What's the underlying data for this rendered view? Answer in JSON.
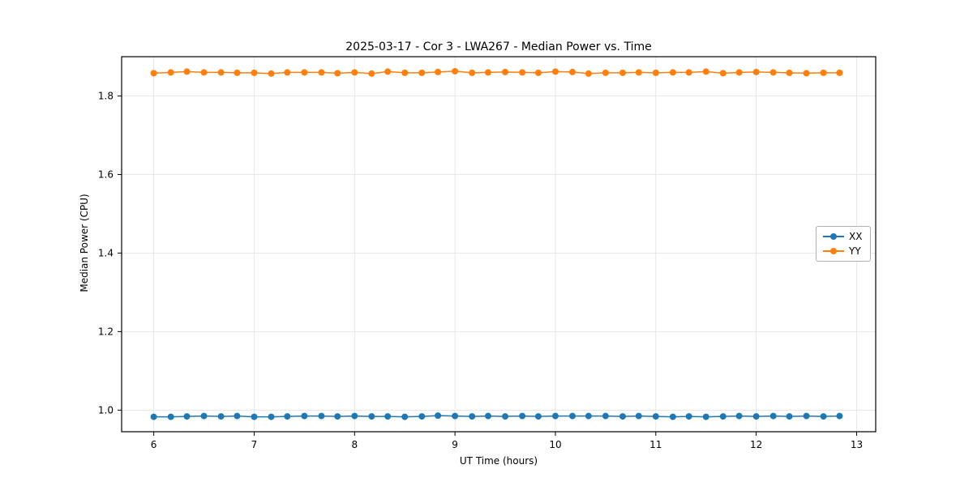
{
  "chart_data": {
    "type": "line",
    "title": "2025-03-17 - Cor 3 - LWA267 - Median Power vs. Time",
    "xlabel": "UT Time (hours)",
    "ylabel": "Median Power (CPU)",
    "xlim": [
      5.68,
      13.19
    ],
    "ylim": [
      0.945,
      1.9
    ],
    "xticks": [
      6,
      7,
      8,
      9,
      10,
      11,
      12,
      13
    ],
    "yticks": [
      1.0,
      1.2,
      1.4,
      1.6,
      1.8
    ],
    "grid": true,
    "legend_position": "center right",
    "x": [
      6.0,
      6.17,
      6.33,
      6.5,
      6.67,
      6.83,
      7.0,
      7.17,
      7.33,
      7.5,
      7.67,
      7.83,
      8.0,
      8.17,
      8.33,
      8.5,
      8.67,
      8.83,
      9.0,
      9.17,
      9.33,
      9.5,
      9.67,
      9.83,
      10.0,
      10.17,
      10.33,
      10.5,
      10.67,
      10.83,
      11.0,
      11.17,
      11.33,
      11.5,
      11.67,
      11.83,
      12.0,
      12.17,
      12.33,
      12.5,
      12.67,
      12.83
    ],
    "series": [
      {
        "name": "XX",
        "color": "#1f77b4",
        "values": [
          0.983,
          0.983,
          0.984,
          0.985,
          0.984,
          0.985,
          0.983,
          0.983,
          0.984,
          0.985,
          0.985,
          0.984,
          0.985,
          0.984,
          0.984,
          0.983,
          0.984,
          0.986,
          0.985,
          0.984,
          0.985,
          0.984,
          0.985,
          0.984,
          0.985,
          0.985,
          0.985,
          0.985,
          0.984,
          0.985,
          0.984,
          0.983,
          0.984,
          0.983,
          0.984,
          0.985,
          0.984,
          0.985,
          0.984,
          0.985,
          0.984,
          0.985
        ]
      },
      {
        "name": "YY",
        "color": "#ff7f0e",
        "values": [
          1.858,
          1.86,
          1.862,
          1.86,
          1.86,
          1.859,
          1.859,
          1.857,
          1.86,
          1.86,
          1.86,
          1.858,
          1.86,
          1.857,
          1.862,
          1.859,
          1.859,
          1.861,
          1.863,
          1.859,
          1.86,
          1.861,
          1.86,
          1.859,
          1.862,
          1.861,
          1.857,
          1.859,
          1.859,
          1.86,
          1.859,
          1.86,
          1.86,
          1.862,
          1.858,
          1.86,
          1.861,
          1.86,
          1.859,
          1.858,
          1.859,
          1.859
        ]
      }
    ]
  }
}
